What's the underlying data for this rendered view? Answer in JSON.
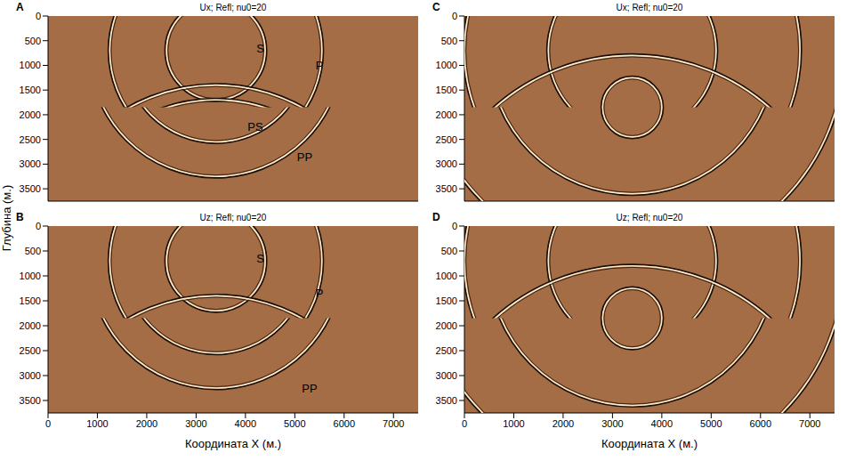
{
  "chart_data": [
    {
      "type": "wavefield",
      "panel": "A",
      "title": "Ux; Refl; nu0=20",
      "y_label": "Глубина (м.)",
      "color": "#a46d45",
      "tick_labels": "y",
      "xlim": [
        0,
        7500
      ],
      "ylim": [
        0,
        3750
      ],
      "xticks": [
        0,
        1000,
        2000,
        3000,
        4000,
        5000,
        6000,
        7000
      ],
      "yticks": [
        0,
        500,
        1000,
        1500,
        2000,
        2500,
        3000,
        3500
      ],
      "wavefronts": [
        {
          "center": [
            3400,
            700
          ],
          "radius": 1000,
          "depth_range": [
            0,
            1850
          ]
        },
        {
          "center": [
            3400,
            700
          ],
          "radius": 2150,
          "depth_range": [
            0,
            1850
          ]
        },
        {
          "center": [
            3400,
            700
          ],
          "radius": 2550,
          "depth_range": [
            1850,
            3750
          ]
        },
        {
          "center": [
            3400,
            700
          ],
          "radius": 1850,
          "depth_range": [
            1850,
            3750
          ]
        },
        {
          "center": [
            3400,
            5000
          ],
          "radius": 3600,
          "depth_range": [
            0,
            1850
          ]
        },
        {
          "center": [
            3400,
            5000
          ],
          "radius": 3300,
          "depth_range": [
            0,
            1850
          ]
        }
      ],
      "annotations": [
        {
          "text": "S",
          "x": 4300,
          "y": 650
        },
        {
          "text": "P",
          "x": 5500,
          "y": 1000
        },
        {
          "text": "PS",
          "x": 4200,
          "y": 2250
        },
        {
          "text": "PP",
          "x": 5200,
          "y": 2850
        }
      ]
    },
    {
      "type": "wavefield",
      "panel": "B",
      "title": "Uz; Refl; nu0=20",
      "x_label": "Координата X (м.)",
      "color": "#a46d45",
      "xlim": [
        0,
        7500
      ],
      "ylim": [
        0,
        3750
      ],
      "xticks": [
        0,
        1000,
        2000,
        3000,
        4000,
        5000,
        6000,
        7000
      ],
      "yticks": [
        0,
        500,
        1000,
        1500,
        2000,
        2500,
        3000,
        3500
      ],
      "wavefronts": [
        {
          "center": [
            3400,
            700
          ],
          "radius": 1000,
          "depth_range": [
            0,
            1850
          ]
        },
        {
          "center": [
            3400,
            700
          ],
          "radius": 2150,
          "depth_range": [
            0,
            1850
          ]
        },
        {
          "center": [
            3400,
            700
          ],
          "radius": 2550,
          "depth_range": [
            1850,
            3750
          ]
        },
        {
          "center": [
            3400,
            700
          ],
          "radius": 1850,
          "depth_range": [
            1850,
            3750
          ]
        },
        {
          "center": [
            3400,
            5000
          ],
          "radius": 3600,
          "depth_range": [
            0,
            1850
          ]
        }
      ],
      "annotations": [
        {
          "text": "S",
          "x": 4300,
          "y": 650
        },
        {
          "text": "P",
          "x": 5500,
          "y": 1350
        },
        {
          "text": "PP",
          "x": 5300,
          "y": 3250
        }
      ]
    },
    {
      "type": "wavefield",
      "panel": "C",
      "title": "Ux; Refl; nu0=20",
      "color": "#a46d45",
      "tick_labels": "y",
      "xlim": [
        0,
        7500
      ],
      "ylim": [
        0,
        3750
      ],
      "xticks": [
        0,
        1000,
        2000,
        3000,
        4000,
        5000,
        6000,
        7000
      ],
      "yticks": [
        0,
        500,
        1000,
        1500,
        2000,
        2500,
        3000,
        3500
      ],
      "wavefronts": [
        {
          "center": [
            3400,
            700
          ],
          "radius": 1700,
          "depth_range": [
            0,
            1850
          ]
        },
        {
          "center": [
            3400,
            700
          ],
          "radius": 3400,
          "depth_range": [
            0,
            1850
          ]
        },
        {
          "center": [
            3400,
            700
          ],
          "radius": 4300,
          "depth_range": [
            1850,
            3750
          ]
        },
        {
          "center": [
            3400,
            700
          ],
          "radius": 2900,
          "depth_range": [
            1850,
            3750
          ]
        },
        {
          "center": [
            3400,
            5000
          ],
          "radius": 4200,
          "depth_range": [
            0,
            1850
          ]
        },
        {
          "center": [
            3400,
            1850
          ],
          "radius": 600,
          "depth_range": [
            0,
            3750
          ]
        }
      ],
      "annotations": []
    },
    {
      "type": "wavefield",
      "panel": "D",
      "title": "Uz; Refl; nu0=20",
      "x_label": "Координата X (м.)",
      "color": "#a46d45",
      "xlim": [
        0,
        7500
      ],
      "ylim": [
        0,
        3750
      ],
      "xticks": [
        0,
        1000,
        2000,
        3000,
        4000,
        5000,
        6000,
        7000
      ],
      "yticks": [
        0,
        500,
        1000,
        1500,
        2000,
        2500,
        3000,
        3500
      ],
      "wavefronts": [
        {
          "center": [
            3400,
            700
          ],
          "radius": 1700,
          "depth_range": [
            0,
            1850
          ]
        },
        {
          "center": [
            3400,
            700
          ],
          "radius": 3400,
          "depth_range": [
            0,
            1850
          ]
        },
        {
          "center": [
            3400,
            700
          ],
          "radius": 4300,
          "depth_range": [
            1850,
            3750
          ]
        },
        {
          "center": [
            3400,
            700
          ],
          "radius": 2900,
          "depth_range": [
            1850,
            3750
          ]
        },
        {
          "center": [
            3400,
            5000
          ],
          "radius": 4200,
          "depth_range": [
            0,
            1850
          ]
        },
        {
          "center": [
            3400,
            1850
          ],
          "radius": 600,
          "depth_range": [
            0,
            3750
          ]
        }
      ],
      "annotations": []
    }
  ]
}
